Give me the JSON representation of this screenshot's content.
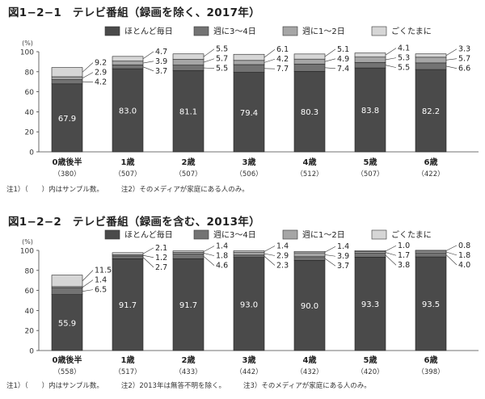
{
  "chart_data": [
    {
      "type": "bar",
      "stacked": true,
      "title": "図1−2−1　テレビ番組（録画を除く、2017年）",
      "unit_label": "(%)",
      "ylim": [
        0,
        100
      ],
      "yticks": [
        0,
        20,
        40,
        60,
        80,
        100
      ],
      "grid": false,
      "legend_position": "top",
      "categories": [
        "0歳後半",
        "1歳",
        "2歳",
        "3歳",
        "4歳",
        "5歳",
        "6歳"
      ],
      "sample_sizes": [
        "（380）",
        "（507）",
        "（507）",
        "（506）",
        "（512）",
        "（507）",
        "（422）"
      ],
      "series": [
        {
          "name": "ほとんど毎日",
          "color": "#4a4a4a",
          "values": [
            67.9,
            83.0,
            81.1,
            79.4,
            80.3,
            83.8,
            82.2
          ]
        },
        {
          "name": "週に3〜4日",
          "color": "#737373",
          "values": [
            4.2,
            3.7,
            5.5,
            7.7,
            7.4,
            5.5,
            6.6
          ]
        },
        {
          "name": "週に1〜2日",
          "color": "#a6a6a6",
          "values": [
            2.9,
            3.9,
            5.7,
            4.2,
            4.9,
            5.3,
            5.7
          ]
        },
        {
          "name": "ごくたまに",
          "color": "#d6d6d6",
          "values": [
            9.2,
            4.7,
            5.5,
            6.1,
            5.1,
            4.1,
            3.3
          ]
        }
      ],
      "notes": [
        "注1）（　　）内はサンプル数。",
        "注2）そのメディアが家庭にある人のみ。"
      ]
    },
    {
      "type": "bar",
      "stacked": true,
      "title": "図1−2−2　テレビ番組（録画を含む、2013年）",
      "unit_label": "(%)",
      "ylim": [
        0,
        100
      ],
      "yticks": [
        0,
        20,
        40,
        60,
        80,
        100
      ],
      "grid": false,
      "legend_position": "top",
      "categories": [
        "0歳後半",
        "1歳",
        "2歳",
        "3歳",
        "4歳",
        "5歳",
        "6歳"
      ],
      "sample_sizes": [
        "（558）",
        "（517）",
        "（433）",
        "（442）",
        "（432）",
        "（420）",
        "（398）"
      ],
      "series": [
        {
          "name": "ほとんど毎日",
          "color": "#4a4a4a",
          "values": [
            55.9,
            91.7,
            91.7,
            93.0,
            90.0,
            93.3,
            93.5
          ]
        },
        {
          "name": "週に3〜4日",
          "color": "#737373",
          "values": [
            6.5,
            2.7,
            4.6,
            2.3,
            3.7,
            3.8,
            4.0
          ]
        },
        {
          "name": "週に1〜2日",
          "color": "#a6a6a6",
          "values": [
            1.4,
            1.2,
            1.8,
            2.9,
            3.9,
            1.7,
            1.8
          ]
        },
        {
          "name": "ごくたまに",
          "color": "#d6d6d6",
          "values": [
            11.5,
            2.1,
            1.4,
            1.4,
            1.4,
            1.0,
            0.8
          ]
        }
      ],
      "notes": [
        "注1）（　　）内はサンプル数。",
        "注2）2013年は無答不明を除く。",
        "注3）そのメディアが家庭にある人のみ。"
      ]
    }
  ]
}
